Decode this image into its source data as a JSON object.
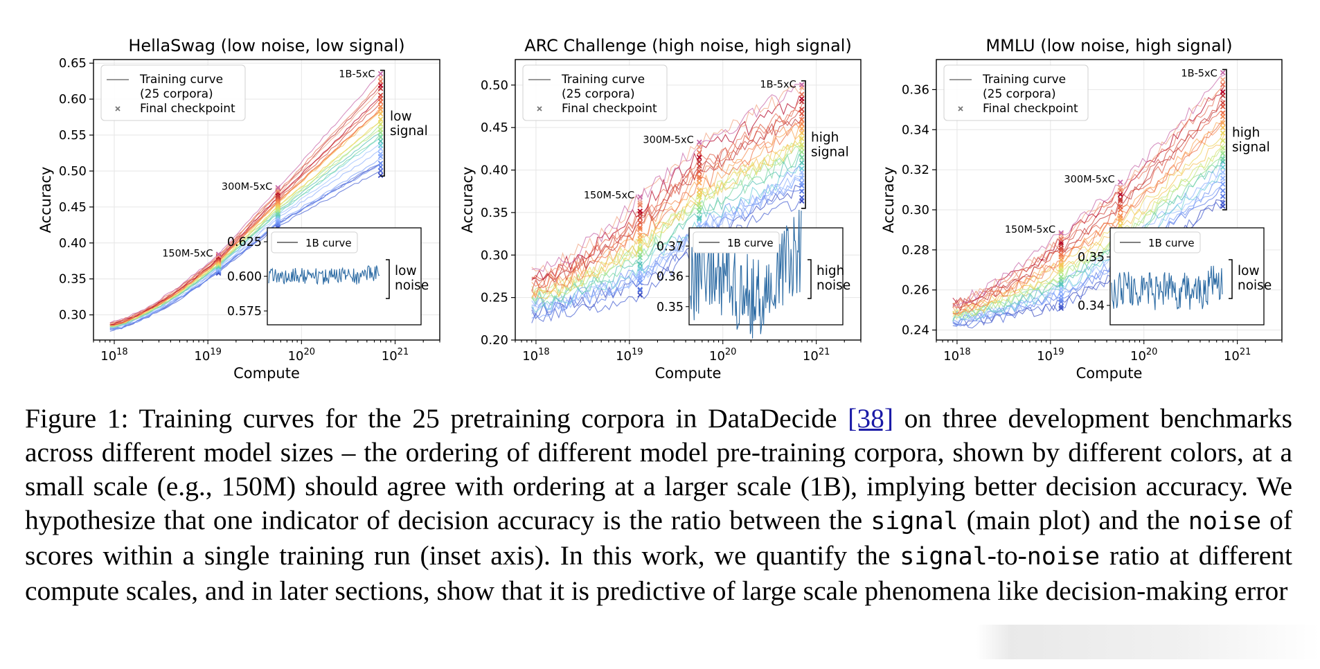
{
  "chart_data": [
    {
      "type": "line",
      "title": "HellaSwag (low noise, low signal)",
      "xlabel": "Compute",
      "ylabel": "Accuracy",
      "x_scale": "log",
      "xlim": [
        6e+17,
        3e+21
      ],
      "ylim": [
        0.265,
        0.655
      ],
      "xticks": [
        "10¹⁸",
        "10¹⁹",
        "10²⁰",
        "10²¹"
      ],
      "yticks": [
        "0.30",
        "0.35",
        "0.40",
        "0.45",
        "0.50",
        "0.55",
        "0.60",
        "0.65"
      ],
      "grid": true,
      "legend": {
        "location": "top-left",
        "entries": [
          "Training curve\n(25 corpora)",
          "Final checkpoint"
        ]
      },
      "start": [
        0.278,
        0.29
      ],
      "scales": [
        {
          "label": "150M-5xC",
          "compute": 1.3e+19,
          "range": [
            0.358,
            0.385
          ]
        },
        {
          "label": "300M-5xC",
          "compute": 5.6e+19,
          "range": [
            0.42,
            0.478
          ]
        },
        {
          "label": "1B-5xC",
          "compute": 7e+20,
          "range": [
            0.493,
            0.64
          ]
        }
      ],
      "bracket": {
        "label": "low\nsignal",
        "range": [
          0.493,
          0.64
        ]
      },
      "inset": {
        "legend": "1B curve",
        "yticks": [
          "0.575",
          "0.600",
          "0.625"
        ],
        "ylim": [
          0.565,
          0.635
        ],
        "center": 0.6,
        "amplitude": 0.006,
        "bracket_label": "low\nnoise"
      }
    },
    {
      "type": "line",
      "title": "ARC Challenge (high noise, high signal)",
      "xlabel": "Compute",
      "ylabel": "Accuracy",
      "x_scale": "log",
      "xlim": [
        6e+17,
        3e+21
      ],
      "ylim": [
        0.2,
        0.53
      ],
      "xticks": [
        "10¹⁸",
        "10¹⁹",
        "10²⁰",
        "10²¹"
      ],
      "yticks": [
        "0.20",
        "0.25",
        "0.30",
        "0.35",
        "0.40",
        "0.45",
        "0.50"
      ],
      "grid": true,
      "legend": {
        "location": "top-left",
        "entries": [
          "Training curve\n(25 corpora)",
          "Final checkpoint"
        ]
      },
      "start": [
        0.225,
        0.28
      ],
      "scales": [
        {
          "label": "150M-5xC",
          "compute": 1.3e+19,
          "range": [
            0.25,
            0.37
          ]
        },
        {
          "label": "300M-5xC",
          "compute": 5.6e+19,
          "range": [
            0.3,
            0.435
          ]
        },
        {
          "label": "1B-5xC",
          "compute": 7e+20,
          "range": [
            0.36,
            0.505
          ]
        }
      ],
      "bracket": {
        "label": "high\nsignal",
        "range": [
          0.355,
          0.505
        ]
      },
      "inset": {
        "legend": "1B curve",
        "yticks": [
          "0.35",
          "0.36",
          "0.37"
        ],
        "ylim": [
          0.344,
          0.376
        ],
        "center": 0.357,
        "amplitude": 0.014,
        "bracket_label": "high\nnoise"
      }
    },
    {
      "type": "line",
      "title": "MMLU (low noise, high signal)",
      "xlabel": "Compute",
      "ylabel": "Accuracy",
      "x_scale": "log",
      "xlim": [
        6e+17,
        3e+21
      ],
      "ylim": [
        0.235,
        0.375
      ],
      "xticks": [
        "10¹⁸",
        "10¹⁹",
        "10²⁰",
        "10²¹"
      ],
      "yticks": [
        "0.24",
        "0.26",
        "0.28",
        "0.30",
        "0.32",
        "0.34",
        "0.36"
      ],
      "grid": true,
      "legend": {
        "location": "top-left",
        "entries": [
          "Training curve\n(25 corpora)",
          "Final checkpoint"
        ]
      },
      "start": [
        0.242,
        0.255
      ],
      "scales": [
        {
          "label": "150M-5xC",
          "compute": 1.3e+19,
          "range": [
            0.25,
            0.29
          ]
        },
        {
          "label": "300M-5xC",
          "compute": 5.6e+19,
          "range": [
            0.265,
            0.315
          ]
        },
        {
          "label": "1B-5xC",
          "compute": 7e+20,
          "range": [
            0.3,
            0.37
          ]
        }
      ],
      "bracket": {
        "label": "high\nsignal",
        "range": [
          0.3,
          0.37
        ]
      },
      "inset": {
        "legend": "1B curve",
        "yticks": [
          "0.34",
          "0.35"
        ],
        "ylim": [
          0.336,
          0.356
        ],
        "center": 0.343,
        "amplitude": 0.004,
        "bracket_label": "low\nnoise"
      }
    }
  ],
  "caption": {
    "lead": "Figure 1: Training curves for the 25 pretraining corpora in DataDecide ",
    "citation": "[38]",
    "part1": " on three development benchmarks across different model sizes – the ordering of different model pre-training corpora, shown by different colors, at a small scale (e.g., 150M) should agree with ordering at a larger scale (1B), implying better decision accuracy. We hypothesize that one indicator of decision accuracy is the ratio between the ",
    "code_signal": "signal",
    "part2": " (main plot) and the ",
    "code_noise": "noise",
    "part3": " of scores within a single training run (inset axis). In this work, we quantify the ",
    "code_signal2": "signal",
    "part4": "-to-",
    "code_noise2": "noise",
    "part5": " ratio at different compute scales, and in later sections, show that it is predictive of large scale phenomena like decision-making error"
  }
}
